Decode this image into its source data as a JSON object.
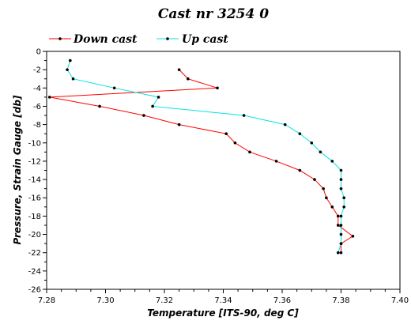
{
  "chart_data": {
    "type": "line",
    "title": "Cast nr 3254 0",
    "xlabel": "Temperature [ITS-90, deg C]",
    "ylabel": "Pressure, Strain Gauge [db]",
    "xlim": [
      7.28,
      7.4
    ],
    "ylim": [
      -26,
      0
    ],
    "x_ticks": [
      "7.28",
      "7.30",
      "7.32",
      "7.34",
      "7.36",
      "7.38",
      "7.40"
    ],
    "y_ticks": [
      "0",
      "-2",
      "-4",
      "-6",
      "-8",
      "-10",
      "-12",
      "-14",
      "-16",
      "-18",
      "-20",
      "-22",
      "-24",
      "-26"
    ],
    "legend_position": "top-left",
    "grid": false,
    "series": [
      {
        "name": "Down cast",
        "color": "#ff0000",
        "points": [
          [
            7.325,
            -2
          ],
          [
            7.328,
            -3
          ],
          [
            7.338,
            -4
          ],
          [
            7.281,
            -5
          ],
          [
            7.298,
            -6
          ],
          [
            7.313,
            -7
          ],
          [
            7.325,
            -8
          ],
          [
            7.341,
            -9
          ],
          [
            7.344,
            -10
          ],
          [
            7.349,
            -11
          ],
          [
            7.358,
            -12
          ],
          [
            7.366,
            -13
          ],
          [
            7.371,
            -14
          ],
          [
            7.374,
            -15
          ],
          [
            7.375,
            -16
          ],
          [
            7.377,
            -17
          ],
          [
            7.379,
            -18
          ],
          [
            7.379,
            -19
          ],
          [
            7.384,
            -20.2
          ],
          [
            7.38,
            -21
          ],
          [
            7.38,
            -22
          ]
        ]
      },
      {
        "name": "Up cast",
        "color": "#00e5e5",
        "points": [
          [
            7.288,
            -1
          ],
          [
            7.287,
            -2
          ],
          [
            7.289,
            -3
          ],
          [
            7.303,
            -4
          ],
          [
            7.318,
            -5
          ],
          [
            7.316,
            -6
          ],
          [
            7.347,
            -7
          ],
          [
            7.361,
            -8
          ],
          [
            7.366,
            -9
          ],
          [
            7.37,
            -10
          ],
          [
            7.373,
            -11
          ],
          [
            7.377,
            -12
          ],
          [
            7.38,
            -13
          ],
          [
            7.38,
            -14
          ],
          [
            7.38,
            -15
          ],
          [
            7.381,
            -16
          ],
          [
            7.381,
            -17
          ],
          [
            7.38,
            -18
          ],
          [
            7.38,
            -19
          ],
          [
            7.38,
            -20
          ],
          [
            7.38,
            -21
          ],
          [
            7.379,
            -22
          ]
        ]
      }
    ]
  }
}
